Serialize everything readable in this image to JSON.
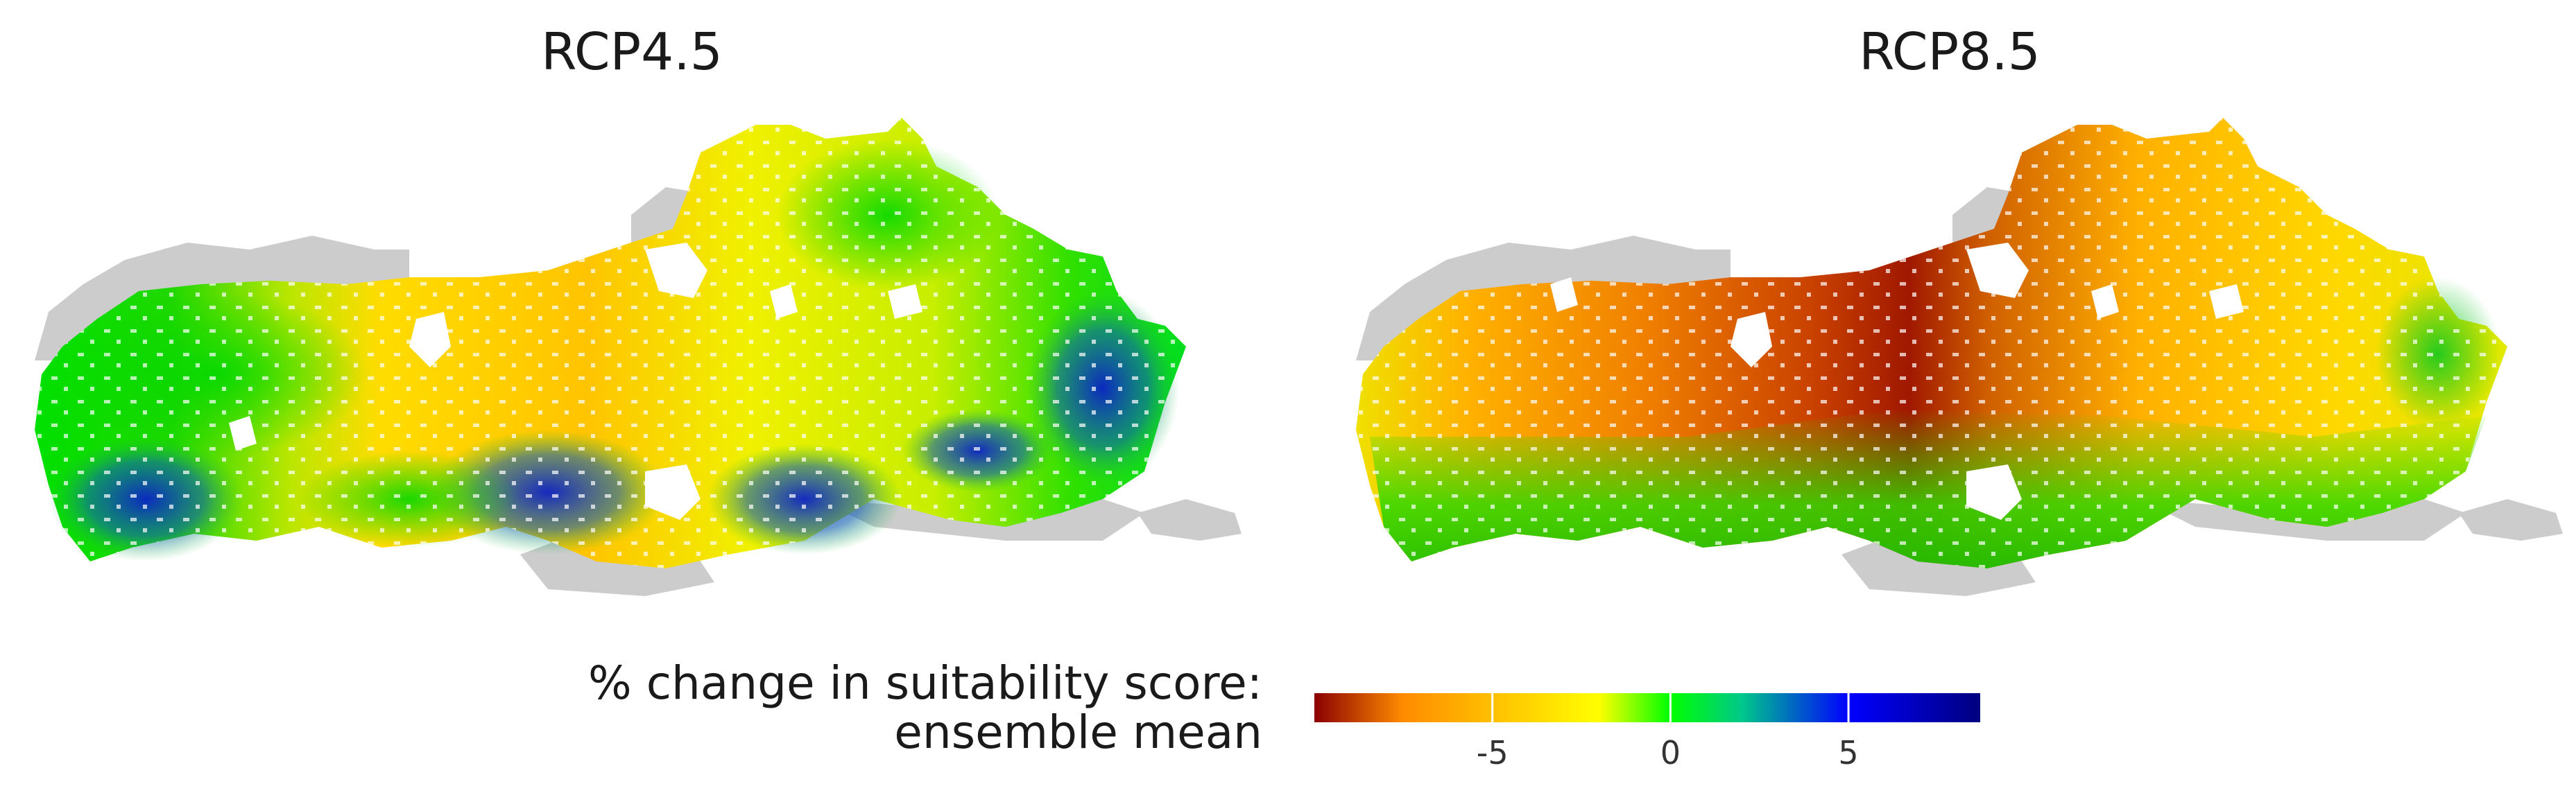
{
  "panels": [
    {
      "id": "rcp45",
      "title": "RCP4.5"
    },
    {
      "id": "rcp85",
      "title": "RCP8.5"
    }
  ],
  "legend": {
    "title_line1": "% change in suitability score:",
    "title_line2": "ensemble mean",
    "ticks": [
      {
        "value": -5,
        "label": "-5"
      },
      {
        "value": 0,
        "label": "0"
      },
      {
        "value": 5,
        "label": "5"
      }
    ],
    "range": [
      -10,
      8.7
    ],
    "colors": [
      {
        "at": -10,
        "color": "#8b0000"
      },
      {
        "at": -7.5,
        "color": "#ff8c00"
      },
      {
        "at": -4,
        "color": "#ffd400"
      },
      {
        "at": -2,
        "color": "#ffff00"
      },
      {
        "at": 0,
        "color": "#00ff00"
      },
      {
        "at": 2,
        "color": "#00c88a"
      },
      {
        "at": 5,
        "color": "#0000ff"
      },
      {
        "at": 8.7,
        "color": "#00007f"
      }
    ]
  },
  "colors": {
    "no_data_gray": "#cccccc",
    "background": "#ffffff"
  }
}
